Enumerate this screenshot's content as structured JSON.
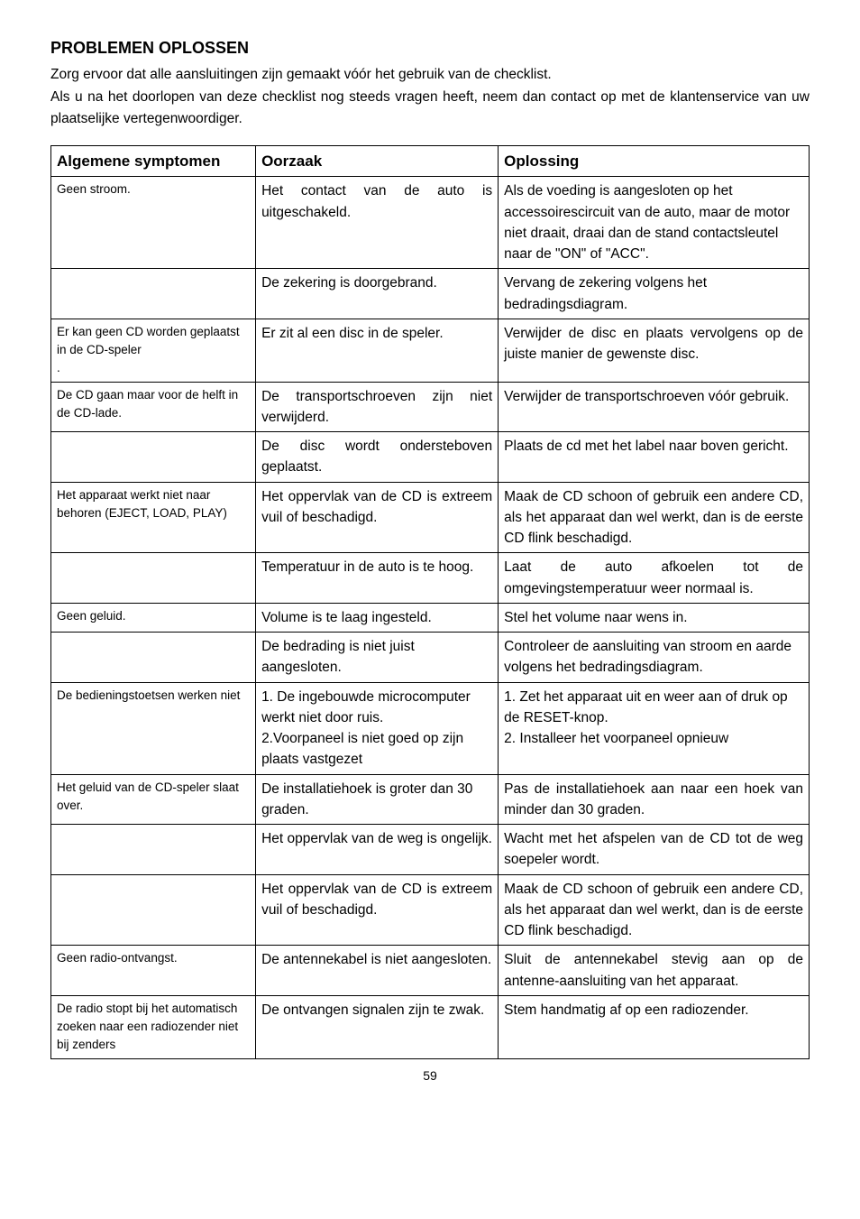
{
  "title": "PROBLEMEN OPLOSSEN",
  "intro_line1": "Zorg ervoor dat alle aansluitingen zijn gemaakt vóór het gebruik van de checklist.",
  "intro_line2": "Als u na het doorlopen van deze checklist nog steeds vragen heeft, neem dan contact op met de klantenservice van uw plaatselijke vertegenwoordiger.",
  "headers": {
    "symptom": "Algemene symptomen",
    "cause": "Oorzaak",
    "solution": "Oplossing"
  },
  "rows": [
    {
      "sym": "Geen stroom.",
      "cause": "Het contact van de auto is uitgeschakeld.",
      "sol": "Als de voeding is aangesloten op het accessoirescircuit van de auto, maar de motor niet draait, draai dan de stand contactsleutel naar de \"ON\" of \"ACC\".",
      "cause_just": true
    },
    {
      "sym": "",
      "cause": "De zekering is doorgebrand.",
      "sol": "Vervang de zekering volgens het bedradingsdiagram."
    },
    {
      "sym": "Er kan geen CD worden geplaatst in de CD-speler\n.",
      "cause": "Er zit al een disc in de speler.",
      "sol": "Verwijder de disc en plaats vervolgens op de juiste manier de gewenste disc.",
      "sol_just": true
    },
    {
      "sym": "De CD gaan maar voor de helft in de CD-lade.",
      "cause": "De transportschroeven zijn niet verwijderd.",
      "sol": "Verwijder de transportschroeven vóór gebruik.",
      "cause_just": true,
      "sol_just": true
    },
    {
      "sym": "",
      "cause": "De disc wordt ondersteboven geplaatst.",
      "sol": "Plaats de cd met het label naar boven gericht.",
      "cause_just": true,
      "sol_just": true
    },
    {
      "sym": "Het apparaat werkt niet naar behoren (EJECT, LOAD, PLAY)",
      "cause": "Het oppervlak van de CD is extreem vuil of beschadigd.",
      "sol": "Maak de CD schoon of gebruik een andere CD, als het apparaat dan wel werkt, dan is de eerste CD flink beschadigd.",
      "cause_just": true,
      "sol_just": true
    },
    {
      "sym": "",
      "cause": "Temperatuur in de auto is te hoog.",
      "sol": "Laat de auto afkoelen tot de omgevingstemperatuur weer normaal is.",
      "sol_just": true
    },
    {
      "sym": "Geen geluid.",
      "cause": "Volume is te laag ingesteld.",
      "sol": "Stel het volume naar wens in."
    },
    {
      "sym": "",
      "cause": "De bedrading is niet juist aangesloten.",
      "sol": "Controleer de aansluiting van stroom en aarde volgens het bedradingsdiagram."
    },
    {
      "sym": "De bedieningstoetsen werken niet",
      "cause": "1. De ingebouwde microcomputer werkt niet door ruis.\n2.Voorpaneel is niet goed op zijn plaats vastgezet",
      "sol": "1. Zet het apparaat uit en weer aan of druk op de RESET-knop.\n2. Installeer het voorpaneel opnieuw"
    },
    {
      "sym": "Het geluid van de CD-speler slaat over.",
      "cause": "De installatiehoek is groter dan 30 graden.",
      "sol": "Pas de installatiehoek aan naar een hoek van minder dan 30 graden.",
      "sol_just": true
    },
    {
      "sym": "",
      "cause": "Het oppervlak van de weg is ongelijk.",
      "sol": "Wacht met het afspelen van de CD tot de weg soepeler wordt.",
      "cause_just": true,
      "sol_just": true
    },
    {
      "sym": "",
      "cause": "Het oppervlak van de CD is extreem vuil of beschadigd.",
      "sol": "Maak de CD schoon of gebruik een andere CD, als het apparaat dan wel werkt, dan is de eerste CD flink beschadigd.",
      "cause_just": true,
      "sol_just": true
    },
    {
      "sym": "Geen radio-ontvangst.",
      "cause": "De antennekabel is niet aangesloten.",
      "sol": "Sluit de antennekabel stevig aan op de antenne-aansluiting van het apparaat.",
      "sol_just": true
    },
    {
      "sym": "De radio stopt bij het automatisch zoeken naar een radiozender niet bij zenders",
      "cause": "De ontvangen signalen zijn te zwak.",
      "sol": "Stem handmatig af op een radiozender.",
      "cause_just": true
    }
  ],
  "page_number": "59"
}
